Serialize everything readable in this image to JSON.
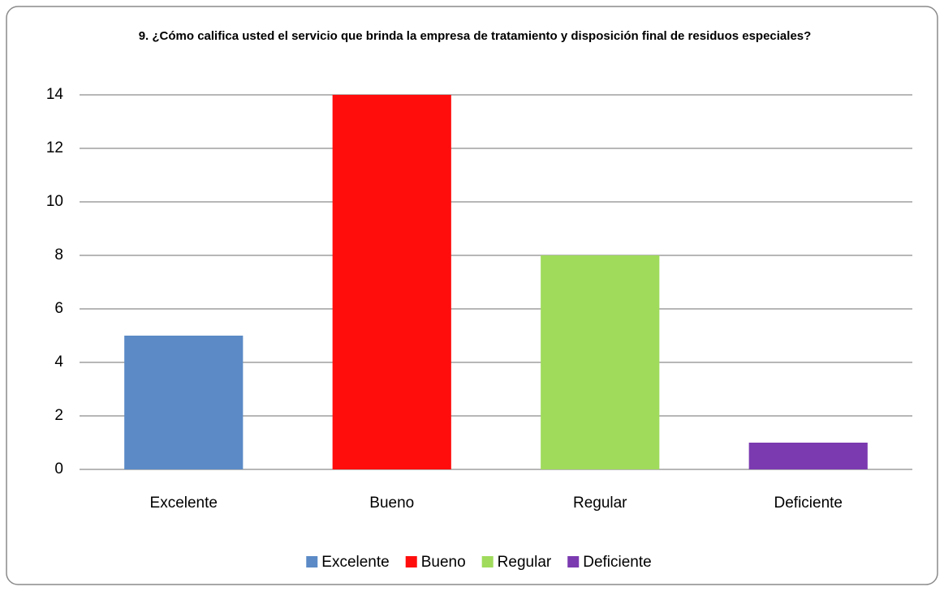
{
  "chart_data": {
    "type": "bar",
    "title": "9. ¿Cómo califica usted el servicio que brinda la empresa de tratamiento y disposición final de residuos especiales?",
    "categories": [
      "Excelente",
      "Bueno",
      "Regular",
      "Deficiente"
    ],
    "values": [
      5,
      14,
      8,
      1
    ],
    "colors": [
      "#5b8ac6",
      "#ff0d0d",
      "#a0db5c",
      "#7b3ab0"
    ],
    "ylim": [
      0,
      14
    ],
    "yticks": [
      0,
      2,
      4,
      6,
      8,
      10,
      12,
      14
    ],
    "grid": true,
    "legend": "bottom"
  }
}
